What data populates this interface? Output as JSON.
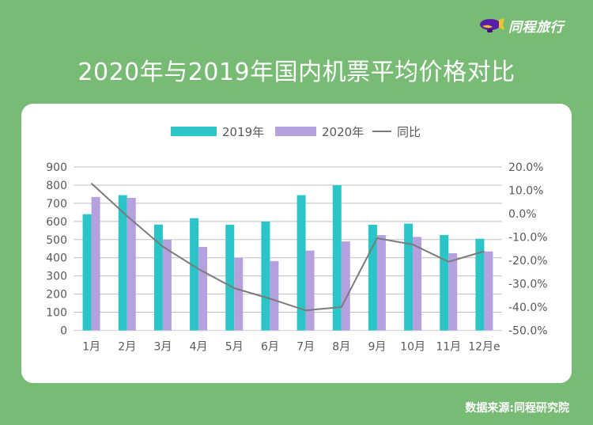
{
  "brand": {
    "name": "同程旅行",
    "icon": "blimp-logo-icon",
    "colors": {
      "body": "#5a1fa8",
      "fin": "#f2c230"
    }
  },
  "header": {
    "title": "2020年与2019年国内机票平均价格对比"
  },
  "footer": {
    "source": "数据来源:同程研究院"
  },
  "colors": {
    "background": "#78bb75",
    "series2019": "#2cc5c7",
    "series2020": "#b5a1de",
    "line": "#7b7b7b",
    "grid": "#bfbfbf",
    "axis_text": "#595959"
  },
  "chart_data": {
    "type": "bar",
    "title": "2020年与2019年国内机票平均价格对比",
    "categories": [
      "1月",
      "2月",
      "3月",
      "4月",
      "5月",
      "6月",
      "7月",
      "8月",
      "9月",
      "10月",
      "11月",
      "12月e"
    ],
    "series": [
      {
        "name": "2019年",
        "type": "bar",
        "axis": "left",
        "values": [
          640,
          745,
          583,
          618,
          582,
          600,
          745,
          800,
          582,
          588,
          525,
          505
        ]
      },
      {
        "name": "2020年",
        "type": "bar",
        "axis": "left",
        "values": [
          735,
          730,
          500,
          460,
          400,
          382,
          440,
          490,
          525,
          515,
          425,
          435
        ]
      },
      {
        "name": "同比",
        "type": "line",
        "axis": "right",
        "unit": "%",
        "values": [
          13.0,
          -1.0,
          -14.1,
          -23.7,
          -31.9,
          -36.4,
          -41.4,
          -40.0,
          -10.5,
          -13.2,
          -20.6,
          -16.1
        ]
      }
    ],
    "left_axis": {
      "ylim": [
        0,
        900
      ],
      "ticks": [
        "0",
        "100",
        "200",
        "300",
        "400",
        "500",
        "600",
        "700",
        "800",
        "900"
      ]
    },
    "right_axis": {
      "ylim": [
        -50,
        20
      ],
      "ticks": [
        "-50.0%",
        "-40.0%",
        "-30.0%",
        "-20.0%",
        "-10.0%",
        "0.0%",
        "10.0%",
        "20.0%"
      ]
    },
    "legend": {
      "position": "top",
      "entries": [
        "2019年",
        "2020年",
        "同比"
      ]
    },
    "grid": true
  }
}
